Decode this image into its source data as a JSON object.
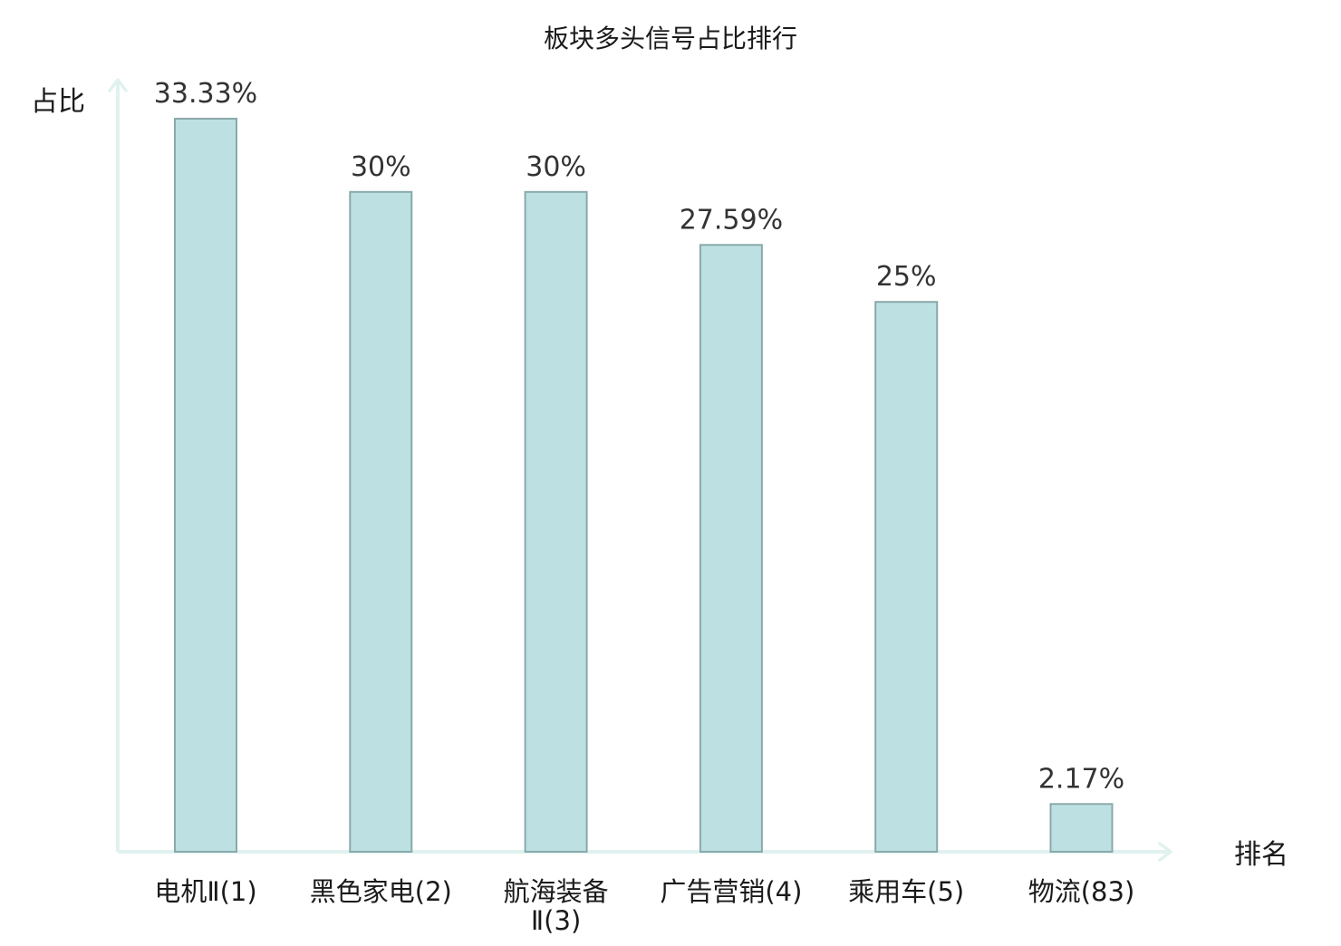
{
  "chart_data": {
    "type": "bar",
    "title": "板块多头信号占比排行",
    "xlabel": "排名",
    "ylabel": "占比",
    "categories": [
      [
        "电机Ⅱ(1)"
      ],
      [
        "黑色家电(2)"
      ],
      [
        "航海装备",
        "Ⅱ(3)"
      ],
      [
        "广告营销(4)"
      ],
      [
        "乘用车(5)"
      ],
      [
        "物流(83)"
      ]
    ],
    "values": [
      33.33,
      30,
      30,
      27.59,
      25,
      2.17
    ],
    "value_labels": [
      "33.33%",
      "30%",
      "30%",
      "27.59%",
      "25%",
      "2.17%"
    ],
    "highlight_index": 5,
    "ylim": [
      0,
      35
    ],
    "grid": false,
    "legend": "none",
    "colors": {
      "bar_fill": "#bde0e2",
      "bar_stroke": "#8aa9ab",
      "axis": "#e0f2ef",
      "highlight_text": "#e60012",
      "text": "#1a1a1a",
      "value_text": "#333333"
    }
  }
}
